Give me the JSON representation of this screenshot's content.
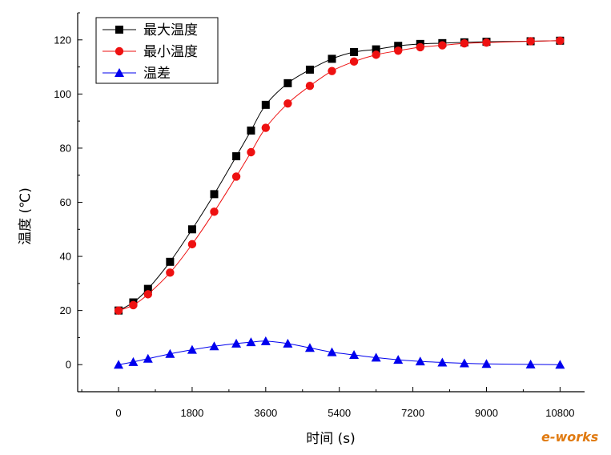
{
  "chart_data": {
    "type": "line",
    "title": "",
    "xlabel": "时间 (s)",
    "ylabel": "温度 (℃)",
    "xlim": [
      -1000,
      11400
    ],
    "ylim": [
      -10,
      130
    ],
    "xticks": [
      0,
      1800,
      3600,
      5400,
      7200,
      9000,
      10800
    ],
    "yticks": [
      0,
      20,
      40,
      60,
      80,
      100,
      120
    ],
    "grid": false,
    "legend_position": "top-left",
    "series": [
      {
        "name": "最大温度",
        "color": "#000000",
        "marker": "square",
        "x": [
          0,
          360,
          720,
          1260,
          1800,
          2340,
          2880,
          3240,
          3600,
          4140,
          4680,
          5220,
          5760,
          6300,
          6840,
          7380,
          7920,
          8460,
          9000,
          10080,
          10800
        ],
        "y": [
          20,
          23,
          28,
          38,
          50,
          63,
          77,
          86.5,
          96,
          104,
          109,
          113,
          115.5,
          116.5,
          117.8,
          118.5,
          118.8,
          119.1,
          119.3,
          119.5,
          119.7
        ]
      },
      {
        "name": "最小温度",
        "color": "#ee1111",
        "marker": "circle",
        "x": [
          0,
          360,
          720,
          1260,
          1800,
          2340,
          2880,
          3240,
          3600,
          4140,
          4680,
          5220,
          5760,
          6300,
          6840,
          7380,
          7920,
          8460,
          9000,
          10080,
          10800
        ],
        "y": [
          20,
          22,
          26,
          34,
          44.5,
          56.5,
          69.5,
          78.5,
          87.5,
          96.5,
          103,
          108.5,
          112,
          114.5,
          116,
          117.3,
          118,
          118.7,
          119,
          119.5,
          119.7
        ]
      },
      {
        "name": "温差",
        "color": "#0000ee",
        "marker": "triangle",
        "x": [
          0,
          360,
          720,
          1260,
          1800,
          2340,
          2880,
          3240,
          3600,
          4140,
          4680,
          5220,
          5760,
          6300,
          6840,
          7380,
          7920,
          8460,
          9000,
          10080,
          10800
        ],
        "y": [
          0,
          1,
          2.2,
          4,
          5.5,
          6.8,
          7.8,
          8.3,
          8.7,
          7.8,
          6.2,
          4.6,
          3.6,
          2.6,
          1.8,
          1.2,
          0.8,
          0.5,
          0.3,
          0.1,
          0
        ]
      }
    ]
  },
  "watermark": {
    "text": "e-works",
    "color": "#e07a10"
  }
}
